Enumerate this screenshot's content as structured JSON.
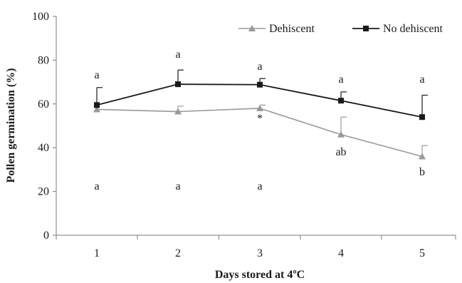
{
  "chart_data": {
    "type": "line",
    "title": "",
    "xlabel": "Days stored at 4ºC",
    "ylabel": "Pollen germination (%)",
    "x": [
      1,
      2,
      3,
      4,
      5
    ],
    "x_tick_labels": [
      "1",
      "2",
      "3",
      "4",
      "5"
    ],
    "ylim": [
      0,
      100
    ],
    "y_ticks": [
      0,
      20,
      40,
      60,
      80,
      100
    ],
    "grid": false,
    "legend_position": "top-right",
    "series": [
      {
        "name": "Dehiscent",
        "marker": "triangle",
        "color": "#999999",
        "values": [
          57.5,
          56.5,
          58,
          46,
          36
        ],
        "error_upper": [
          0,
          2.5,
          1.5,
          8,
          5
        ],
        "letters": [
          "a",
          "a",
          "a",
          "ab",
          "b"
        ]
      },
      {
        "name": "No dehiscent",
        "marker": "square",
        "color": "#1a1a1a",
        "values": [
          59.5,
          69,
          68.8,
          61.5,
          54
        ],
        "error_upper": [
          8,
          6.5,
          2.8,
          4,
          10
        ],
        "letters": [
          "a",
          "a",
          "a",
          "a",
          "a"
        ]
      }
    ],
    "annotations": [
      {
        "x": 3,
        "text": "*"
      }
    ]
  }
}
